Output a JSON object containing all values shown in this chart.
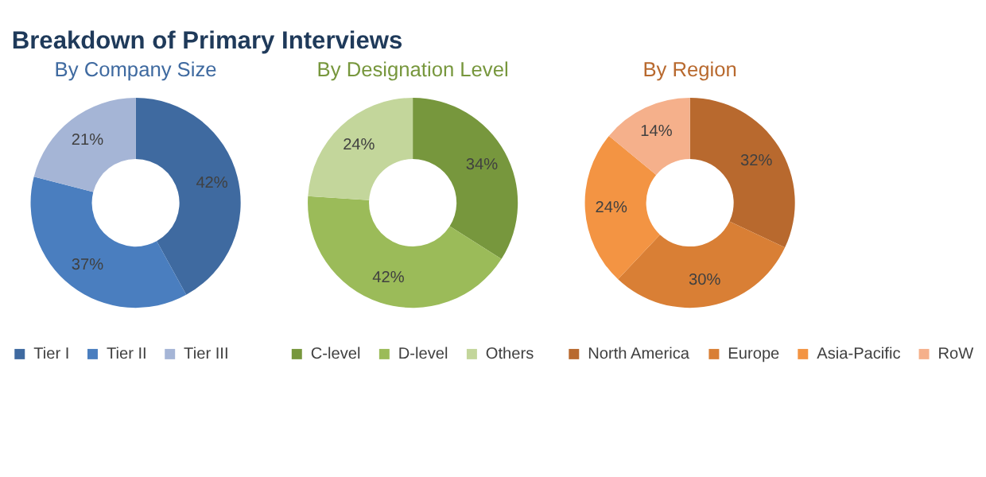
{
  "chart_data": [
    {
      "type": "donut",
      "title": "By Company Size",
      "annotations": [
        "Breakdown of Primary Interviews"
      ],
      "categories": [
        "Tier I",
        "Tier II",
        "Tier III"
      ],
      "values": [
        42,
        37,
        21
      ],
      "colors": [
        "#3f6aa0",
        "#4a7ebf",
        "#a5b5d6"
      ],
      "value_labels": [
        "42%",
        "37%",
        "21%"
      ],
      "legend": "bottom"
    },
    {
      "type": "donut",
      "title": "By Designation Level",
      "categories": [
        "C-level",
        "D-level",
        "Others"
      ],
      "values": [
        34,
        42,
        24
      ],
      "colors": [
        "#77973d",
        "#9bbb59",
        "#c3d69b"
      ],
      "value_labels": [
        "34%",
        "42%",
        "24%"
      ],
      "legend": "bottom"
    },
    {
      "type": "donut",
      "title": "By Region",
      "categories": [
        "North America",
        "Europe",
        "Asia-Pacific",
        "RoW"
      ],
      "values": [
        32,
        30,
        24,
        14
      ],
      "colors": [
        "#b8692e",
        "#d97f35",
        "#f39443",
        "#f5b08b"
      ],
      "value_labels": [
        "32%",
        "30%",
        "24%",
        "14%"
      ],
      "legend": "bottom"
    }
  ]
}
